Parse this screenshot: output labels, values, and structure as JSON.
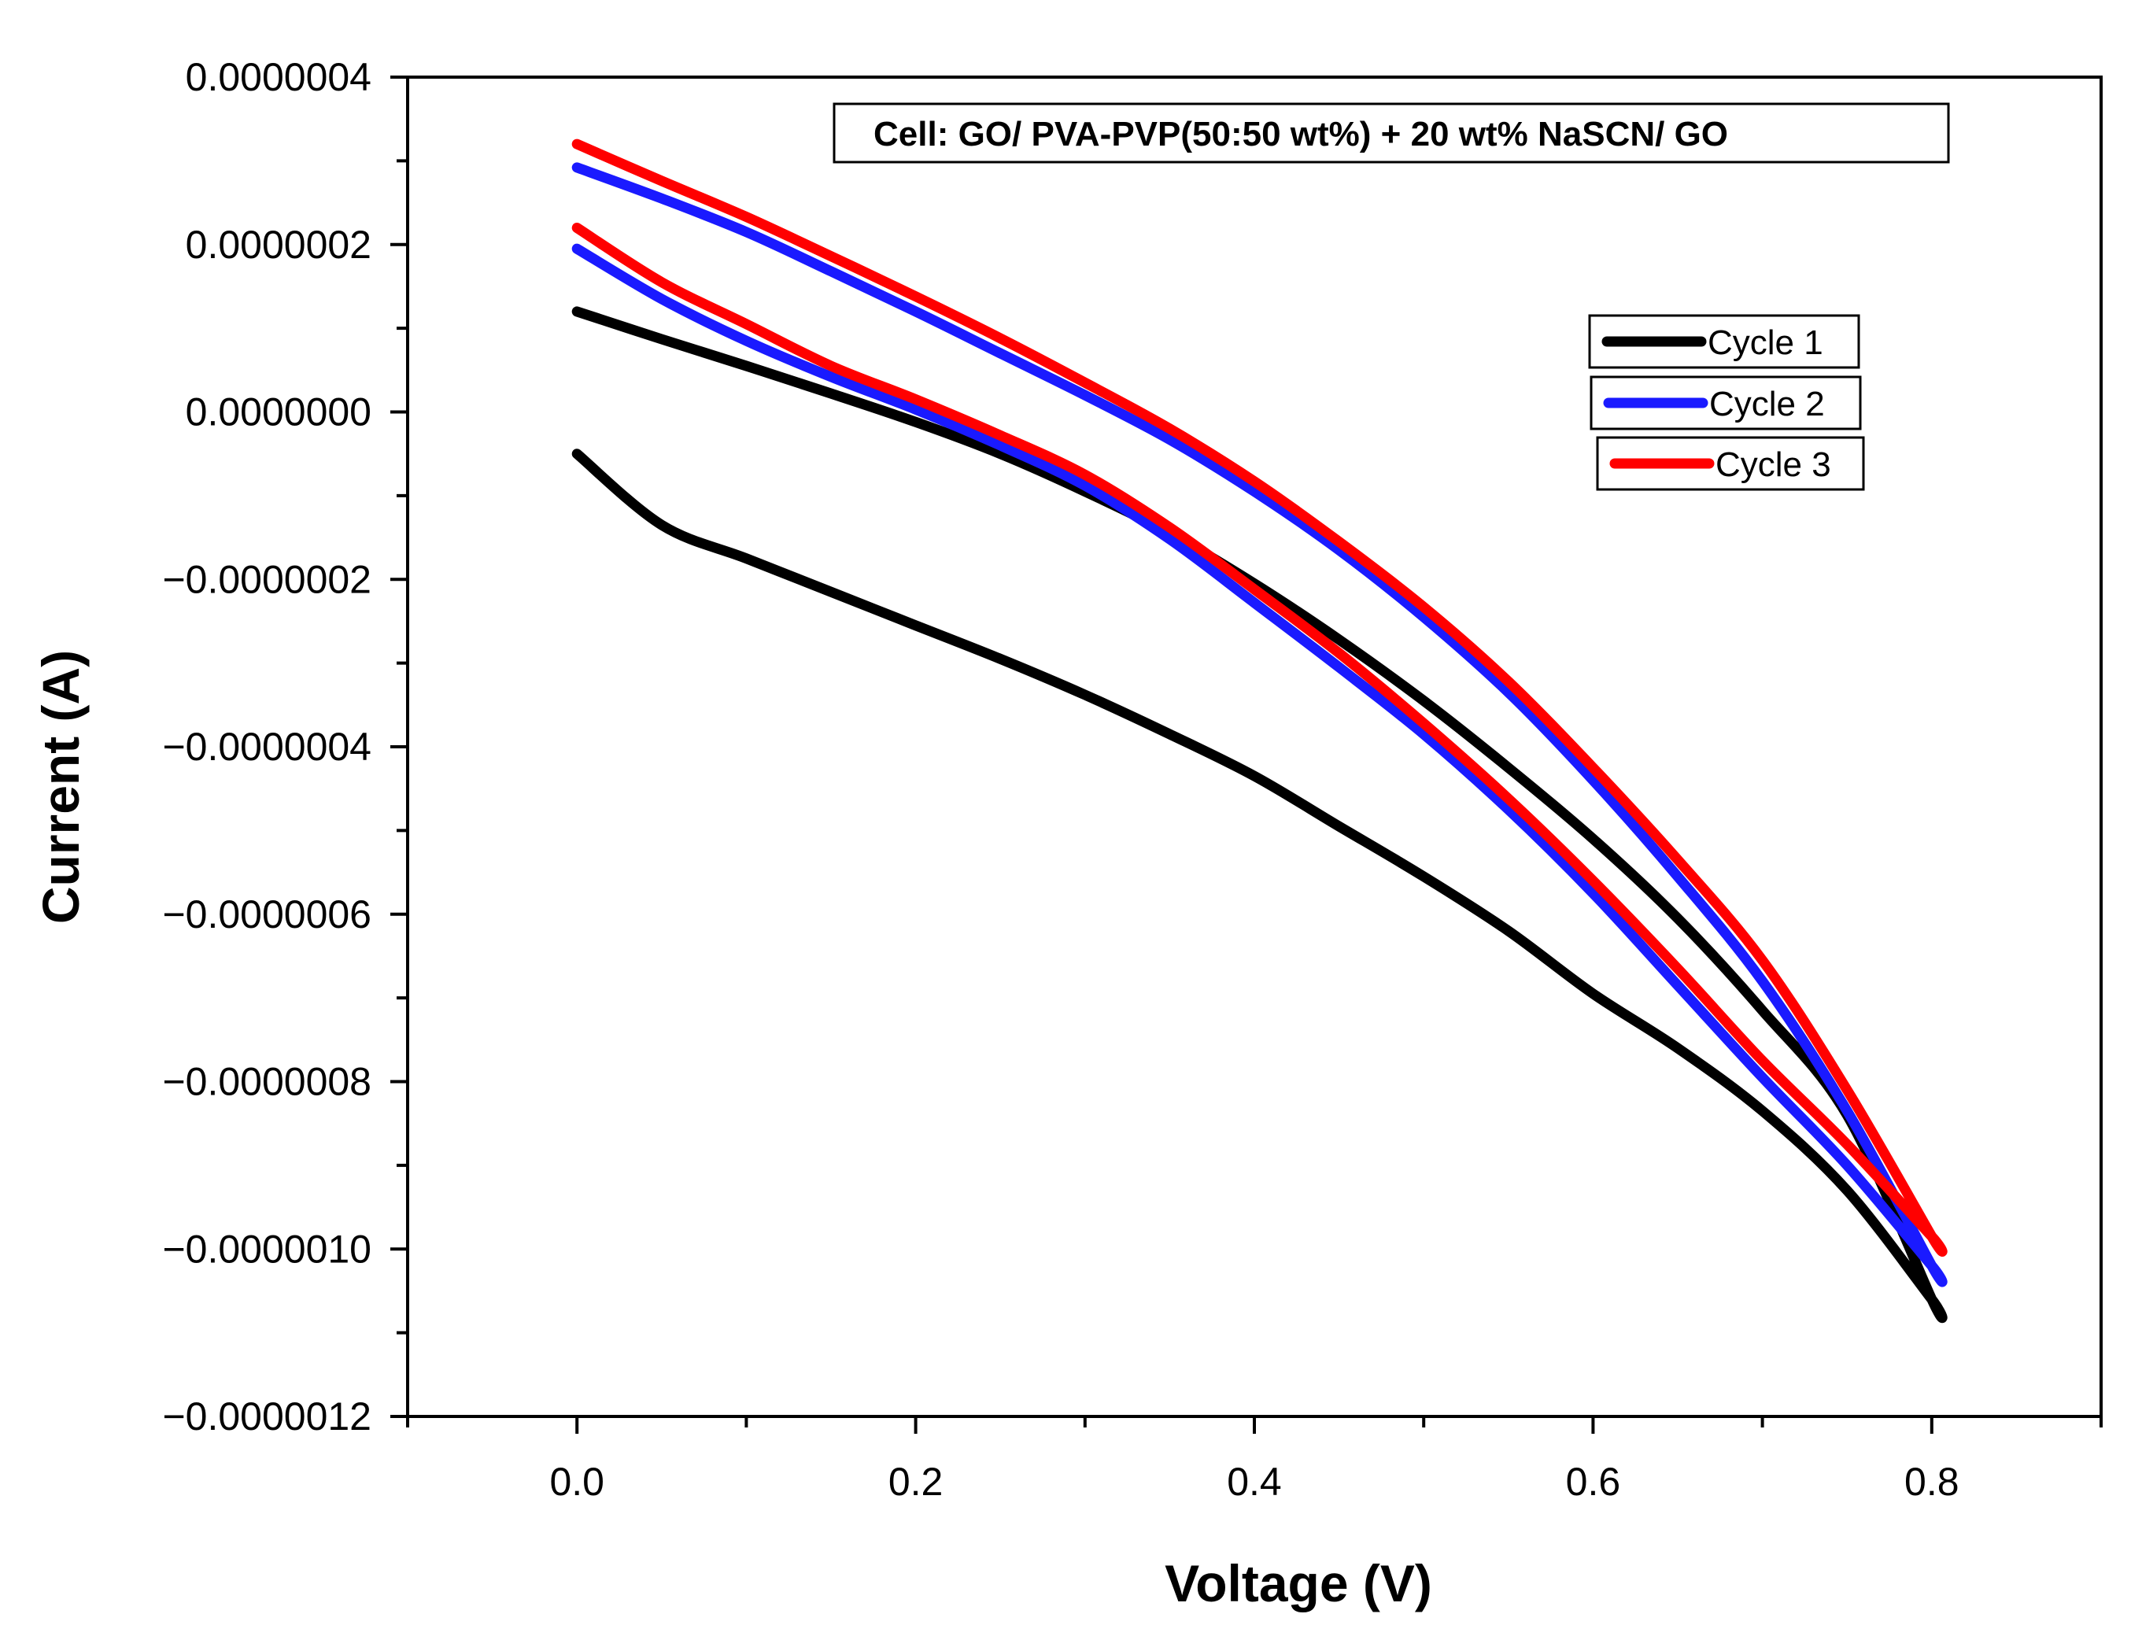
{
  "chart_data": {
    "type": "line",
    "title": "",
    "xlabel": "Voltage (V)",
    "ylabel": "Current (A)",
    "xlim": [
      -0.1,
      0.9
    ],
    "ylim": [
      -1.2e-06,
      4e-07
    ],
    "grid": false,
    "x_ticks": [
      {
        "value": 0.0,
        "label": "0.0"
      },
      {
        "value": 0.2,
        "label": "0.2"
      },
      {
        "value": 0.4,
        "label": "0.4"
      },
      {
        "value": 0.6,
        "label": "0.6"
      },
      {
        "value": 0.8,
        "label": "0.8"
      }
    ],
    "y_ticks": [
      {
        "value": 4e-07,
        "label": "0.0000004"
      },
      {
        "value": 2e-07,
        "label": "0.0000002"
      },
      {
        "value": 0,
        "label": "0.0000000"
      },
      {
        "value": -2e-07,
        "label": "−0.0000002"
      },
      {
        "value": -4e-07,
        "label": "−0.0000004"
      },
      {
        "value": -6e-07,
        "label": "−0.0000006"
      },
      {
        "value": -8e-07,
        "label": "−0.0000008"
      },
      {
        "value": -1e-06,
        "label": "−0.0000010"
      },
      {
        "value": -1.2e-06,
        "label": "−0.0000012"
      }
    ],
    "annotation": "Cell: GO/ PVA-PVP(50:50 wt%) + 20 wt% NaSCN/ GO",
    "legend_position": "upper-right",
    "series": [
      {
        "name": "Cycle 1",
        "color": "#000000",
        "x": [
          0.0,
          0.05,
          0.1,
          0.15,
          0.2,
          0.25,
          0.3,
          0.35,
          0.4,
          0.45,
          0.5,
          0.55,
          0.6,
          0.65,
          0.7,
          0.75,
          0.8,
          0.8,
          0.75,
          0.7,
          0.65,
          0.6,
          0.55,
          0.5,
          0.45,
          0.4,
          0.35,
          0.3,
          0.25,
          0.2,
          0.15,
          0.1,
          0.05,
          0.0
        ],
        "y": [
          1.2e-07,
          8.7e-08,
          5.5e-08,
          2.2e-08,
          -1.2e-08,
          -5e-08,
          -9.5e-08,
          -1.45e-07,
          -2.05e-07,
          -2.72e-07,
          -3.45e-07,
          -4.25e-07,
          -5.1e-07,
          -6.05e-07,
          -7.15e-07,
          -8.4e-07,
          -1.06e-06,
          -1.06e-06,
          -9.3e-07,
          -8.35e-07,
          -7.6e-07,
          -6.95e-07,
          -6.2e-07,
          -5.55e-07,
          -4.95e-07,
          -4.35e-07,
          -3.85e-07,
          -3.38e-07,
          -2.95e-07,
          -2.55e-07,
          -2.15e-07,
          -1.75e-07,
          -1.35e-07,
          -5e-08
        ]
      },
      {
        "name": "Cycle 2",
        "color": "#1a1aff",
        "x": [
          0.0,
          0.05,
          0.1,
          0.15,
          0.2,
          0.25,
          0.3,
          0.35,
          0.4,
          0.45,
          0.5,
          0.55,
          0.6,
          0.65,
          0.7,
          0.75,
          0.8,
          0.8,
          0.75,
          0.7,
          0.65,
          0.6,
          0.55,
          0.5,
          0.45,
          0.4,
          0.35,
          0.3,
          0.25,
          0.2,
          0.15,
          0.1,
          0.05,
          0.0
        ],
        "y": [
          1.95e-07,
          1.35e-07,
          8.5e-08,
          4.2e-08,
          3e-09,
          -4e-08,
          -8.8e-08,
          -1.52e-07,
          -2.28e-07,
          -3.05e-07,
          -3.85e-07,
          -4.75e-07,
          -5.75e-07,
          -6.85e-07,
          -7.95e-07,
          -9e-07,
          -1.02e-06,
          -1.02e-06,
          -8.35e-07,
          -6.8e-07,
          -5.55e-07,
          -4.4e-07,
          -3.35e-07,
          -2.45e-07,
          -1.65e-07,
          -9.5e-08,
          -3.3e-08,
          2e-08,
          7e-08,
          1.2e-07,
          1.68e-07,
          2.15e-07,
          2.55e-07,
          2.92e-07
        ]
      },
      {
        "name": "Cycle 3",
        "color": "#ff0000",
        "x": [
          0.0,
          0.05,
          0.1,
          0.15,
          0.2,
          0.25,
          0.3,
          0.35,
          0.4,
          0.45,
          0.5,
          0.55,
          0.6,
          0.65,
          0.7,
          0.75,
          0.8,
          0.8,
          0.75,
          0.7,
          0.65,
          0.6,
          0.55,
          0.5,
          0.45,
          0.4,
          0.35,
          0.3,
          0.25,
          0.2,
          0.15,
          0.1,
          0.05,
          0.0
        ],
        "y": [
          2.2e-07,
          1.55e-07,
          1.05e-07,
          5.5e-08,
          1.5e-08,
          -2.8e-08,
          -7.5e-08,
          -1.38e-07,
          -2.12e-07,
          -2.88e-07,
          -3.72e-07,
          -4.62e-07,
          -5.6e-07,
          -6.65e-07,
          -7.75e-07,
          -8.75e-07,
          -9.85e-07,
          -9.85e-07,
          -8.1e-07,
          -6.55e-07,
          -5.35e-07,
          -4.25e-07,
          -3.22e-07,
          -2.33e-07,
          -1.55e-07,
          -8.3e-08,
          -2e-08,
          3.5e-08,
          8.8e-08,
          1.38e-07,
          1.86e-07,
          2.33e-07,
          2.76e-07,
          3.2e-07
        ]
      }
    ]
  }
}
